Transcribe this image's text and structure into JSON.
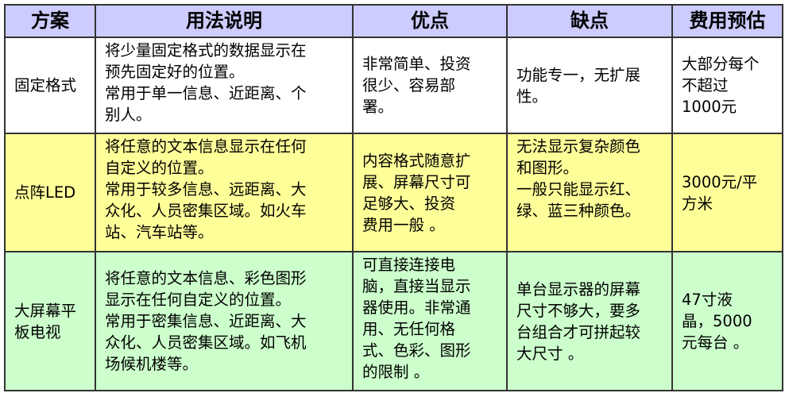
{
  "headers": [
    "方案",
    "用法说明",
    "优点",
    "缺点",
    "费用预估"
  ],
  "colors": {
    "header_bg": "#ccccff",
    "row1_bg": "#ffffff",
    "row2_bg": "#ffff99",
    "row3_bg": "#ccffcc"
  },
  "rows": [
    {
      "scheme": [
        "固定格式"
      ],
      "usage": [
        "将少量固定格式的数据显示在",
        "预先固定好的位置。",
        "常用于单一信息、近距离、个",
        "别人。"
      ],
      "pros": [
        "非常简单、投资",
        "很少、容易部",
        "署。"
      ],
      "cons": [
        "功能专一，无扩展",
        "性。"
      ],
      "cost": [
        "大部分每个",
        "不超过",
        "1000元"
      ]
    },
    {
      "scheme": [
        "点阵LED"
      ],
      "usage": [
        "将任意的文本信息显示在任何",
        "自定义的位置。",
        "常用于较多信息、远距离、大",
        "众化、人员密集区域。如火车",
        "站、汽车站等。"
      ],
      "pros": [
        "内容格式随意扩",
        "展、屏幕尺寸可",
        "足够大、投资",
        "费用一般 。"
      ],
      "cons": [
        "无法显示复杂颜色",
        "和图形。",
        "一般只能显示红、",
        "绿、蓝三种颜色。"
      ],
      "cost": [
        "3000元/平",
        "方米"
      ]
    },
    {
      "scheme": [
        "大屏幕平",
        "板电视"
      ],
      "usage": [
        "将任意的文本信息、彩色图形",
        "显示在任何自定义的位置。",
        "常用于密集信息、近距离、大",
        "众化、人员密集区域。如飞机",
        "场候机楼等。"
      ],
      "pros": [
        "可直接连接电",
        "脑，直接当显示",
        "器使用。非常通",
        "用、无任何格",
        "式、色彩、图形",
        "的限制 。"
      ],
      "cons": [
        "单台显示器的屏幕",
        "尺寸不够大，要多",
        "台组合才可拼起较",
        "大尺寸 。"
      ],
      "cost": [
        "47寸液",
        "晶，5000",
        "元每台 。"
      ]
    }
  ]
}
